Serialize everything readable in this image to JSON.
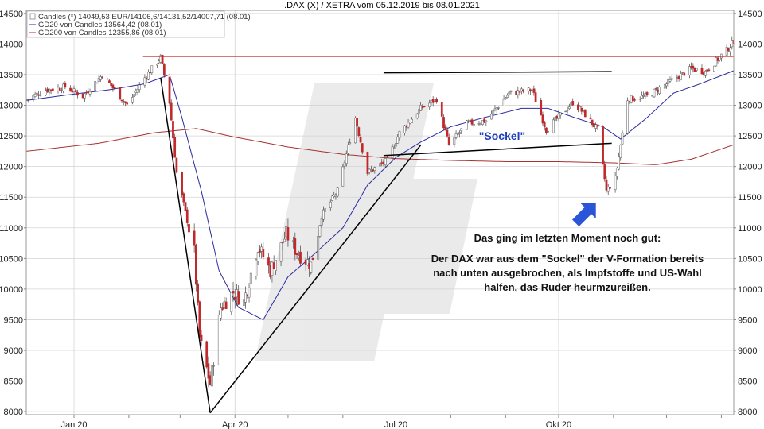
{
  "chart_data": {
    "type": "candlestick",
    "title": ".DAX (X) / XETRA vom 05.12.2019 bis 08.01.2021",
    "ylim": [
      7950,
      14550
    ],
    "y_ticks": [
      8000,
      8500,
      9000,
      9500,
      10000,
      10500,
      11000,
      11500,
      12000,
      12500,
      13000,
      13500,
      14000,
      14500
    ],
    "y_tick_labels": [
      "8000",
      "8500",
      "9000",
      "9500",
      "10000",
      "10500",
      "11000",
      "11500",
      "12000",
      "12500",
      "13000",
      "13500",
      "14000",
      "14500"
    ],
    "x_range": [
      "2019-12-05",
      "2021-01-08"
    ],
    "x_ticks": [
      {
        "date": "2020-01-01",
        "label": "Jan 20"
      },
      {
        "date": "2020-04-01",
        "label": "Apr 20"
      },
      {
        "date": "2020-07-01",
        "label": "Jul 20"
      },
      {
        "date": "2020-10-01",
        "label": "Okt 20"
      }
    ],
    "legend": [
      {
        "label": "Candles (*) 14049,53 EUR/14106,6/14131,52/14007,71 (08.01)",
        "color": "#888888"
      },
      {
        "label": "GD20 von Candles 13564,42 (08.01)",
        "color": "#2a2aa0"
      },
      {
        "label": "GD200 von Candles 12355,86 (08.01)",
        "color": "#a83232"
      }
    ],
    "price_path": [
      [
        "2019-12-05",
        13100
      ],
      [
        "2019-12-16",
        13250
      ],
      [
        "2019-12-27",
        13300
      ],
      [
        "2020-01-06",
        13150
      ],
      [
        "2020-01-17",
        13500
      ],
      [
        "2020-01-31",
        13000
      ],
      [
        "2020-02-10",
        13450
      ],
      [
        "2020-02-19",
        13780
      ],
      [
        "2020-02-24",
        13050
      ],
      [
        "2020-02-28",
        11900
      ],
      [
        "2020-03-09",
        10600
      ],
      [
        "2020-03-12",
        9200
      ],
      [
        "2020-03-16",
        8700
      ],
      [
        "2020-03-18",
        8450
      ],
      [
        "2020-03-24",
        9700
      ],
      [
        "2020-03-31",
        9950
      ],
      [
        "2020-04-06",
        9800
      ],
      [
        "2020-04-14",
        10700
      ],
      [
        "2020-04-21",
        10300
      ],
      [
        "2020-04-30",
        10900
      ],
      [
        "2020-05-06",
        10600
      ],
      [
        "2020-05-14",
        10400
      ],
      [
        "2020-05-20",
        11200
      ],
      [
        "2020-05-29",
        11600
      ],
      [
        "2020-06-08",
        12800
      ],
      [
        "2020-06-15",
        11900
      ],
      [
        "2020-06-26",
        12100
      ],
      [
        "2020-07-03",
        12550
      ],
      [
        "2020-07-15",
        12950
      ],
      [
        "2020-07-24",
        13100
      ],
      [
        "2020-07-31",
        12350
      ],
      [
        "2020-08-10",
        12700
      ],
      [
        "2020-08-21",
        12750
      ],
      [
        "2020-09-03",
        13200
      ],
      [
        "2020-09-16",
        13250
      ],
      [
        "2020-09-24",
        12600
      ],
      [
        "2020-10-09",
        13050
      ],
      [
        "2020-10-16",
        12850
      ],
      [
        "2020-10-23",
        12600
      ],
      [
        "2020-10-28",
        11600
      ],
      [
        "2020-11-02",
        11800
      ],
      [
        "2020-11-09",
        13100
      ],
      [
        "2020-11-20",
        13150
      ],
      [
        "2020-12-01",
        13350
      ],
      [
        "2020-12-15",
        13600
      ],
      [
        "2020-12-23",
        13550
      ],
      [
        "2021-01-04",
        13900
      ],
      [
        "2021-01-08",
        14050
      ]
    ],
    "gd20_path": [
      [
        "2019-12-05",
        13080
      ],
      [
        "2019-12-31",
        13180
      ],
      [
        "2020-01-20",
        13250
      ],
      [
        "2020-02-10",
        13350
      ],
      [
        "2020-02-24",
        13500
      ],
      [
        "2020-03-02",
        12800
      ],
      [
        "2020-03-13",
        11600
      ],
      [
        "2020-03-23",
        10300
      ],
      [
        "2020-04-03",
        9700
      ],
      [
        "2020-04-17",
        9500
      ],
      [
        "2020-05-01",
        10200
      ],
      [
        "2020-05-15",
        10550
      ],
      [
        "2020-06-01",
        11000
      ],
      [
        "2020-06-15",
        11700
      ],
      [
        "2020-07-01",
        12150
      ],
      [
        "2020-07-15",
        12400
      ],
      [
        "2020-08-01",
        12650
      ],
      [
        "2020-08-20",
        12800
      ],
      [
        "2020-09-10",
        12950
      ],
      [
        "2020-09-25",
        12950
      ],
      [
        "2020-10-10",
        12800
      ],
      [
        "2020-10-26",
        12650
      ],
      [
        "2020-11-05",
        12450
      ],
      [
        "2020-11-20",
        12800
      ],
      [
        "2020-12-05",
        13200
      ],
      [
        "2020-12-20",
        13350
      ],
      [
        "2021-01-08",
        13564
      ]
    ],
    "gd200_path": [
      [
        "2019-12-05",
        12250
      ],
      [
        "2020-01-15",
        12380
      ],
      [
        "2020-02-15",
        12550
      ],
      [
        "2020-03-10",
        12620
      ],
      [
        "2020-04-01",
        12480
      ],
      [
        "2020-05-01",
        12320
      ],
      [
        "2020-06-01",
        12200
      ],
      [
        "2020-07-01",
        12130
      ],
      [
        "2020-08-01",
        12100
      ],
      [
        "2020-09-01",
        12080
      ],
      [
        "2020-10-01",
        12080
      ],
      [
        "2020-11-01",
        12060
      ],
      [
        "2020-11-25",
        12030
      ],
      [
        "2020-12-15",
        12120
      ],
      [
        "2021-01-08",
        12356
      ]
    ],
    "lines": [
      {
        "name": "resistance",
        "color": "#cc2222",
        "points": [
          [
            "2020-02-09",
            13800
          ],
          [
            "2021-01-08",
            13800
          ]
        ]
      },
      {
        "name": "crash-leg",
        "color": "#000000",
        "points": [
          [
            "2020-02-19",
            13450
          ],
          [
            "2020-03-18",
            7980
          ]
        ]
      },
      {
        "name": "recovery-leg",
        "color": "#000000",
        "points": [
          [
            "2020-03-18",
            7980
          ],
          [
            "2020-07-15",
            12350
          ]
        ]
      },
      {
        "name": "channel-top",
        "color": "#000000",
        "points": [
          [
            "2020-06-24",
            13530
          ],
          [
            "2020-10-31",
            13550
          ]
        ]
      },
      {
        "name": "channel-bottom",
        "color": "#000000",
        "points": [
          [
            "2020-06-24",
            12180
          ],
          [
            "2020-10-31",
            12380
          ]
        ]
      }
    ],
    "annotations": {
      "sockel_label": "\"Sockel\"",
      "lines": [
        "Das ging im letzten Moment noch gut:",
        "Der DAX war aus dem \"Sockel\" der V-Formation bereits",
        "nach unten ausgebrochen, als Impfstoffe und US-Wahl",
        "halfen, das Ruder heurmzureißen."
      ]
    },
    "colors": {
      "bull": "#ffffff",
      "bear": "#c0282a",
      "wick": "#444444",
      "gd20": "#2a2aa0",
      "gd200": "#a83232",
      "resistance": "#cc2222",
      "arrow": "#2a55d8",
      "grid": "#d4d4d4"
    },
    "grid": true,
    "legend_position": "top-left"
  }
}
